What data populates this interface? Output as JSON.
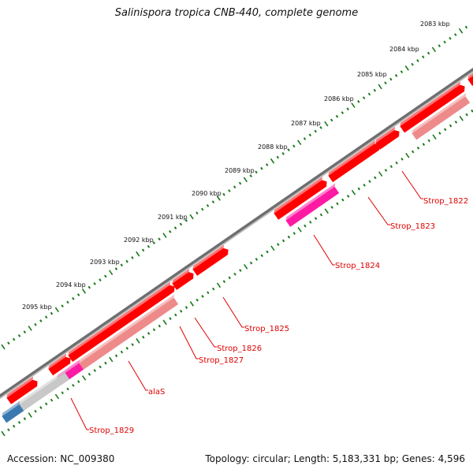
{
  "title": "Salinispora tropica CNB-440, complete genome",
  "footer": {
    "accession": "Accession: NC_009380",
    "summary": "Topology: circular; Length: 5,183,331 bp; Genes: 4,596"
  },
  "scale_labels": [
    "2083 kbp",
    "2084 kbp",
    "2085 kbp",
    "2086 kbp",
    "2087 kbp",
    "2088 kbp",
    "2089 kbp",
    "2090 kbp",
    "2091 kbp",
    "2092 kbp",
    "2093 kbp",
    "2094 kbp",
    "2095 kbp"
  ],
  "gene_labels": [
    "Strop_1822",
    "Strop_1823",
    "Strop_1824",
    "Strop_1825",
    "Strop_1826",
    "Strop_1827",
    "alaS",
    "Strop_1829"
  ],
  "colors": {
    "backbone": "#7f7f7f",
    "cds": "#ff0000",
    "cds_light": "#ee8a8a",
    "trna": "#ff1aa3",
    "other": "#c8c8c8",
    "blue": "#3a78b0",
    "tick": "#1a7a1a",
    "label_red": "#e00000"
  }
}
